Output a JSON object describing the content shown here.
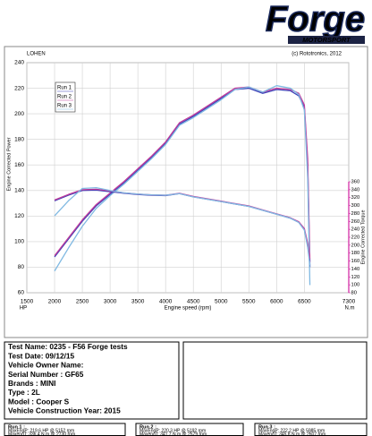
{
  "logo": {
    "text": "Forge",
    "subtext": "MOTORSPORT"
  },
  "chart_data": {
    "type": "line",
    "header_left": "LOHEN",
    "header_right": "(c) Rototronics, 2012",
    "x_label": "Engine speed (rpm)",
    "y_label": "Engine Corrected Power",
    "y2_label": "Engine Corrected Torque",
    "y_unit": "HP",
    "y2_unit": "N.m",
    "x": [
      2000,
      2250,
      2500,
      2750,
      3000,
      3250,
      3500,
      3750,
      4000,
      4250,
      4500,
      4750,
      5000,
      5250,
      5500,
      5750,
      6000,
      6250,
      6400,
      6500,
      6560,
      6600
    ],
    "xlim": [
      1500,
      7300
    ],
    "xticks": [
      1500,
      2000,
      2500,
      3000,
      3500,
      4000,
      4500,
      5000,
      5500,
      6000,
      6500,
      7300
    ],
    "ylim": [
      60,
      240
    ],
    "yticks": [
      60,
      80,
      100,
      120,
      140,
      160,
      180,
      200,
      220,
      240
    ],
    "y2lim": [
      80,
      360
    ],
    "y2ticks": [
      80,
      100,
      120,
      140,
      160,
      180,
      200,
      220,
      240,
      260,
      280,
      300,
      320,
      340,
      360
    ],
    "grid": true,
    "legend": "upper left",
    "series": [
      {
        "name": "Run 1",
        "color": "#3b41b8",
        "values": [
          88,
          102,
          116,
          128,
          137,
          146,
          156,
          166,
          177,
          192,
          198,
          205,
          212,
          219,
          220,
          216,
          219,
          218,
          214,
          205,
          160,
          80
        ]
      },
      {
        "name": "Run 2",
        "color": "#c03c9c",
        "values": [
          89,
          103,
          117,
          129,
          138,
          147,
          157,
          167,
          178,
          193,
          199,
          206,
          213,
          220,
          221,
          217,
          220,
          219,
          216,
          207,
          165,
          84
        ]
      },
      {
        "name": "Run 3",
        "color": "#80b9e2",
        "values": [
          77,
          95,
          112,
          126,
          136,
          145,
          155,
          165,
          176,
          191,
          197,
          204,
          211,
          219,
          221,
          217,
          222,
          220,
          215,
          203,
          150,
          66
        ]
      },
      {
        "color": "#3b41b8",
        "axis": "y2",
        "values": [
          312,
          326,
          338,
          339,
          335,
          331,
          328,
          326,
          325,
          330,
          322,
          316,
          310,
          304,
          298,
          288,
          278,
          268,
          258,
          240,
          200,
          160
        ]
      },
      {
        "color": "#c03c9c",
        "axis": "y2",
        "values": [
          314,
          328,
          340,
          341,
          337,
          332,
          329,
          327,
          326,
          331,
          323,
          317,
          311,
          305,
          299,
          289,
          279,
          269,
          259,
          242,
          205,
          165
        ]
      },
      {
        "color": "#80b9e2",
        "axis": "y2",
        "values": [
          274,
          312,
          343,
          345,
          338,
          332,
          329,
          327,
          326,
          330,
          322,
          316,
          310,
          304,
          298,
          288,
          278,
          268,
          257,
          238,
          195,
          150
        ]
      }
    ]
  },
  "info": [
    "Test Name: 0235 - F56 Forge tests",
    "Test Date: 09/12/15",
    "Vehicle Owner Name:",
    "Serial Number  : GF65",
    "Brands  : MINI",
    "Type  : 2L",
    "Model  : Cooper S",
    "Vehicle Construction Year: 2015"
  ],
  "runs": [
    {
      "title": "Run 1 :",
      "lines": [
        "MaxEngP: 219.6 HP @ 5152 rpm",
        "MaxengT: 336.4 N.m @ 2730 rpm"
      ]
    },
    {
      "title": "Run 2 :",
      "lines": [
        "MaxEngP: 220.3 HP @ 5192 rpm",
        "MaxengT: 341.7 N.m @ 2579 rpm"
      ]
    },
    {
      "title": "Run 3 :",
      "lines": [
        "MaxEngP: 222.2 HP @ 5985 rpm",
        "MaxengT: 345.8 N.m @ 2607 rpm"
      ]
    }
  ]
}
